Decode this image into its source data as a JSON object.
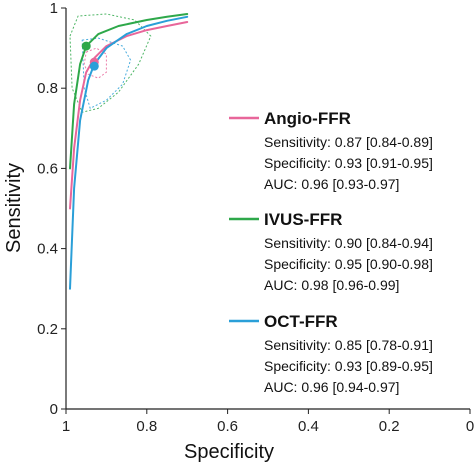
{
  "chart_data": {
    "type": "line",
    "xlabel": "Specificity",
    "ylabel": "Sensitivity",
    "xlim": [
      1,
      0
    ],
    "ylim": [
      0,
      1
    ],
    "x_ticks": [
      "1",
      "0.8",
      "0.6",
      "0.4",
      "0.2",
      "0"
    ],
    "y_ticks": [
      "0",
      "0.2",
      "0.4",
      "0.6",
      "0.8",
      "1"
    ],
    "grid": false,
    "legend_position": "right",
    "series": [
      {
        "name": "Angio-FFR",
        "color": "#e8669a",
        "summary_point": {
          "specificity": 0.93,
          "sensitivity": 0.865
        },
        "curve": [
          {
            "specificity": 0.99,
            "sensitivity": 0.5
          },
          {
            "specificity": 0.98,
            "sensitivity": 0.65
          },
          {
            "specificity": 0.965,
            "sensitivity": 0.77
          },
          {
            "specificity": 0.95,
            "sensitivity": 0.84
          },
          {
            "specificity": 0.93,
            "sensitivity": 0.875
          },
          {
            "specificity": 0.9,
            "sensitivity": 0.905
          },
          {
            "specificity": 0.85,
            "sensitivity": 0.93
          },
          {
            "specificity": 0.8,
            "sensitivity": 0.945
          },
          {
            "specificity": 0.75,
            "sensitivity": 0.955
          },
          {
            "specificity": 0.7,
            "sensitivity": 0.965
          }
        ],
        "stats": [
          "Sensitivity: 0.87 [0.84-0.89]",
          "Specificity: 0.93 [0.91-0.95]",
          "AUC: 0.96 [0.93-0.97]"
        ]
      },
      {
        "name": "IVUS-FFR",
        "color": "#2ea84a",
        "summary_point": {
          "specificity": 0.95,
          "sensitivity": 0.905
        },
        "curve": [
          {
            "specificity": 0.99,
            "sensitivity": 0.6
          },
          {
            "specificity": 0.98,
            "sensitivity": 0.76
          },
          {
            "specificity": 0.965,
            "sensitivity": 0.86
          },
          {
            "specificity": 0.95,
            "sensitivity": 0.905
          },
          {
            "specificity": 0.92,
            "sensitivity": 0.935
          },
          {
            "specificity": 0.87,
            "sensitivity": 0.955
          },
          {
            "specificity": 0.8,
            "sensitivity": 0.97
          },
          {
            "specificity": 0.75,
            "sensitivity": 0.978
          },
          {
            "specificity": 0.7,
            "sensitivity": 0.985
          }
        ],
        "stats": [
          "Sensitivity: 0.90 [0.84-0.94]",
          "Specificity: 0.95 [0.90-0.98]",
          "AUC: 0.98 [0.96-0.99]"
        ]
      },
      {
        "name": "OCT-FFR",
        "color": "#2a9fd8",
        "summary_point": {
          "specificity": 0.93,
          "sensitivity": 0.855
        },
        "curve": [
          {
            "specificity": 0.99,
            "sensitivity": 0.3
          },
          {
            "specificity": 0.98,
            "sensitivity": 0.55
          },
          {
            "specificity": 0.965,
            "sensitivity": 0.72
          },
          {
            "specificity": 0.945,
            "sensitivity": 0.82
          },
          {
            "specificity": 0.93,
            "sensitivity": 0.86
          },
          {
            "specificity": 0.9,
            "sensitivity": 0.9
          },
          {
            "specificity": 0.85,
            "sensitivity": 0.935
          },
          {
            "specificity": 0.8,
            "sensitivity": 0.955
          },
          {
            "specificity": 0.75,
            "sensitivity": 0.968
          },
          {
            "specificity": 0.7,
            "sensitivity": 0.978
          }
        ],
        "stats": [
          "Sensitivity: 0.85 [0.78-0.91]",
          "Specificity: 0.93 [0.89-0.95]",
          "AUC: 0.96 [0.94-0.97]"
        ]
      }
    ]
  }
}
